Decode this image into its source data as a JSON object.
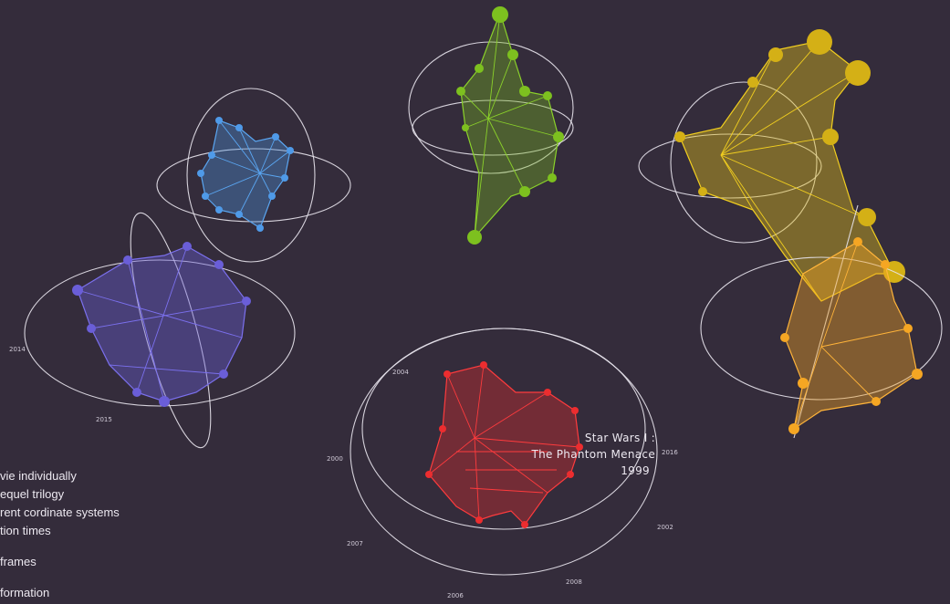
{
  "menu": {
    "items": [
      "vie individually",
      "equel trilogy",
      "rent cordinate systems",
      "tion times",
      "frames",
      "formation"
    ]
  },
  "highlight": {
    "title_line1": "Star Wars I :",
    "title_line2": "The Phantom Menace",
    "year": "1999"
  },
  "axis_ticks": {
    "red": [
      "2000",
      "2004",
      "2008",
      "2002",
      "2016",
      "2006",
      "2007"
    ],
    "purple": [
      "2014",
      "2015"
    ]
  },
  "colors": {
    "background": "#342c3b",
    "ring": "#e9e6ee",
    "blue": "#4f9ae8",
    "green": "#7dc01f",
    "yellow": "#e6c21a",
    "orange": "#f5a623",
    "purple": "#6a5ed8",
    "red": "#ec2d2f"
  }
}
